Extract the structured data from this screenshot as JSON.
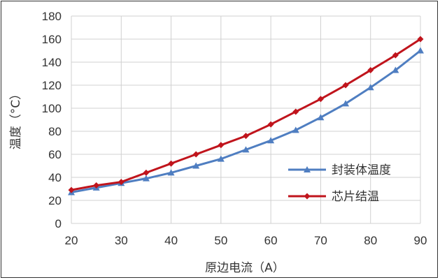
{
  "chart_data": {
    "type": "line",
    "title": "",
    "xlabel": "原边电流（A）",
    "ylabel": "温度（°C）",
    "x": [
      20,
      25,
      30,
      35,
      40,
      45,
      50,
      55,
      60,
      65,
      70,
      75,
      80,
      85,
      90
    ],
    "xticks": [
      20,
      30,
      40,
      50,
      60,
      70,
      80,
      90
    ],
    "yticks": [
      0,
      20,
      40,
      60,
      80,
      100,
      120,
      140,
      160,
      180
    ],
    "xlim": [
      20,
      90
    ],
    "ylim": [
      0,
      180
    ],
    "grid": true,
    "legend_position": "right",
    "series": [
      {
        "name": "封装体温度",
        "color": "#4f7ec1",
        "marker": "triangle",
        "values": [
          27,
          31,
          35,
          39,
          44,
          50,
          56,
          64,
          72,
          81,
          92,
          104,
          118,
          133,
          150
        ]
      },
      {
        "name": "芯片结温",
        "color": "#c0141c",
        "marker": "diamond",
        "values": [
          29,
          33,
          36,
          44,
          52,
          60,
          68,
          76,
          86,
          97,
          108,
          120,
          133,
          146,
          160
        ]
      }
    ]
  }
}
